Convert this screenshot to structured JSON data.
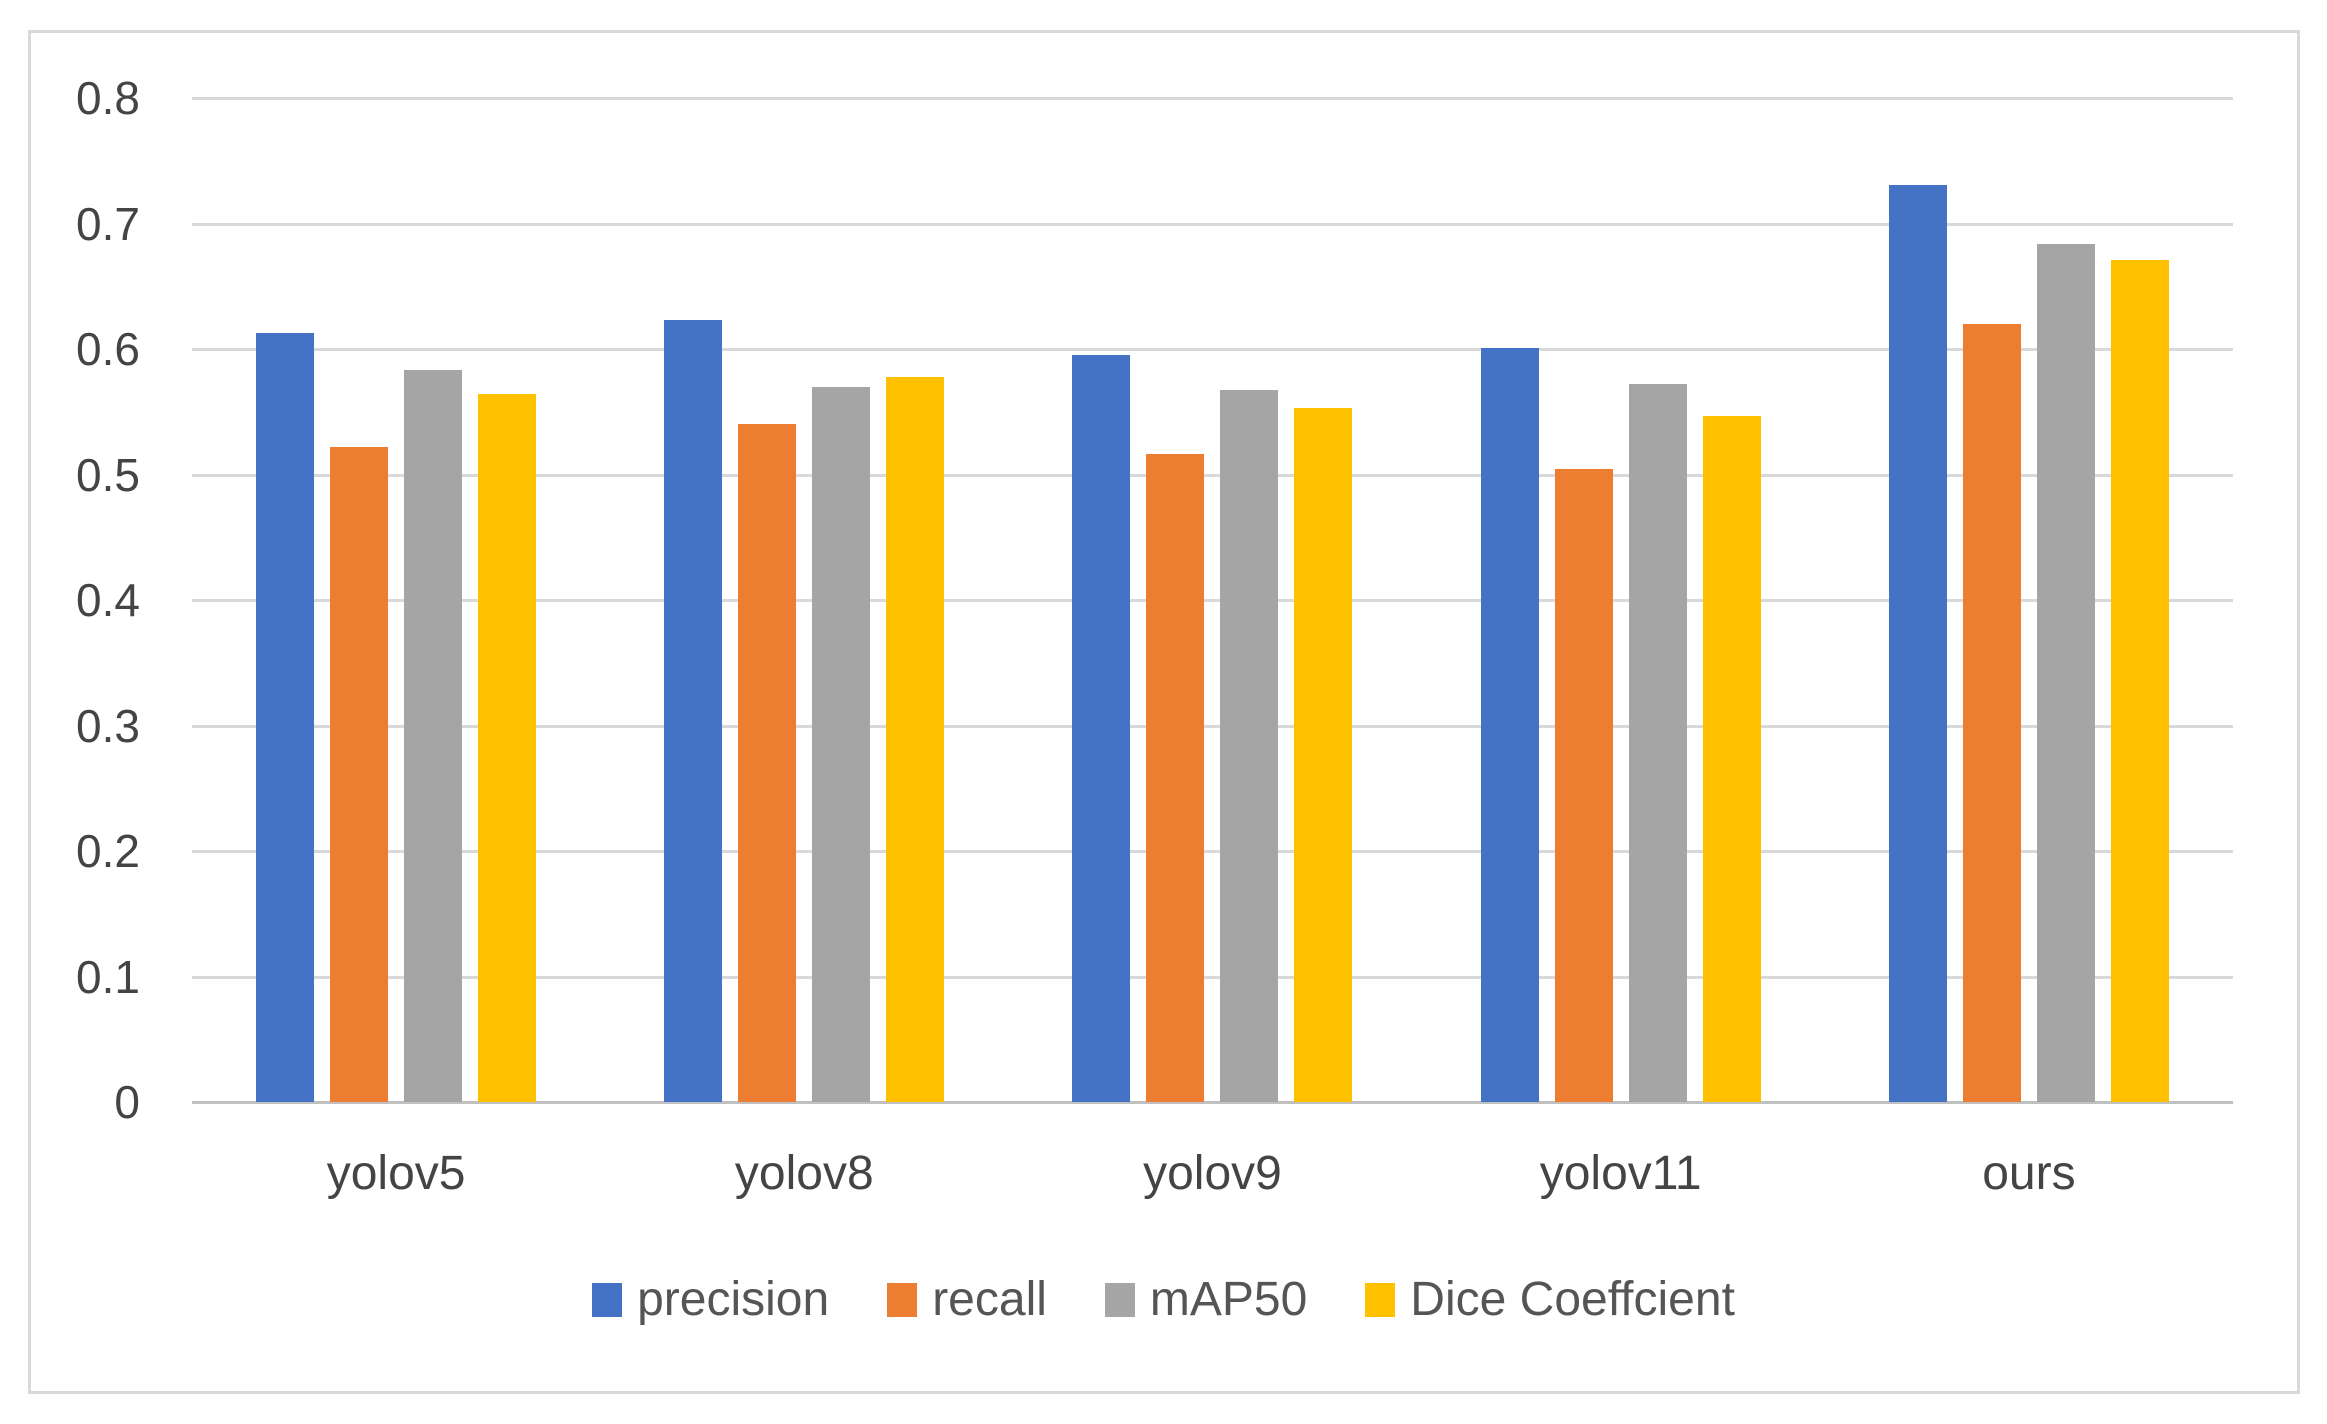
{
  "figure": {
    "background": "#ffffff",
    "frame_border_color": "#d9d9d9"
  },
  "chart_data": {
    "type": "bar",
    "title": "",
    "xlabel": "",
    "ylabel": "",
    "categories": [
      "yolov5",
      "yolov8",
      "yolov9",
      "yolov11",
      "ours"
    ],
    "series": [
      {
        "name": "precision",
        "color": "#4472C4",
        "values": [
          0.613,
          0.623,
          0.595,
          0.601,
          0.731
        ]
      },
      {
        "name": "recall",
        "color": "#ED7D31",
        "values": [
          0.522,
          0.54,
          0.516,
          0.504,
          0.62
        ]
      },
      {
        "name": "mAP50",
        "color": "#A5A5A5",
        "values": [
          0.583,
          0.57,
          0.567,
          0.572,
          0.684
        ]
      },
      {
        "name": "Dice Coeffcient",
        "color": "#FFC000",
        "values": [
          0.564,
          0.578,
          0.553,
          0.547,
          0.671
        ]
      }
    ],
    "ylim": [
      0,
      0.8
    ],
    "ytick_step": 0.1,
    "ytick_labels": [
      "0",
      "0.1",
      "0.2",
      "0.3",
      "0.4",
      "0.5",
      "0.6",
      "0.7",
      "0.8"
    ],
    "grid": true,
    "gridline_color": "#d9d9d9",
    "axis_line_color": "#c0c0c0",
    "tick_label_color": "#444444",
    "legend_position": "bottom",
    "legend_text_color": "#555555"
  }
}
